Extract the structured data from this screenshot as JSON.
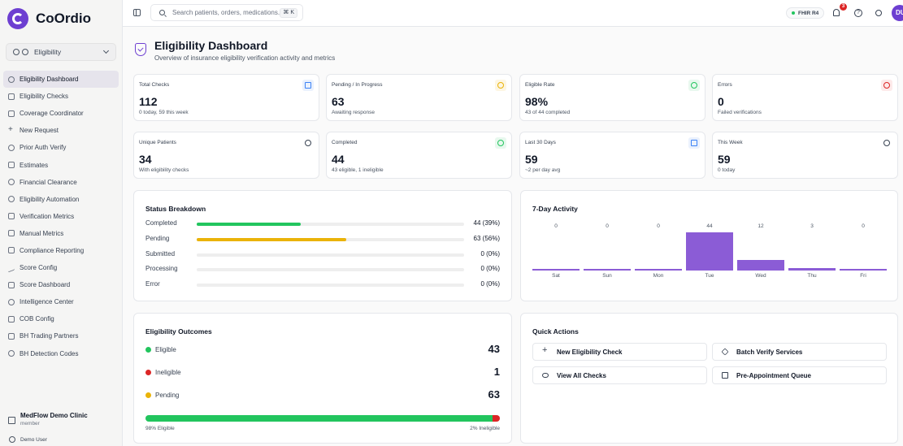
{
  "app": {
    "name": "CoOrdio"
  },
  "module": {
    "selected": "Eligibility"
  },
  "sidebar": {
    "items": [
      {
        "label": "Eligibility Dashboard",
        "icon": "check-circle-icon",
        "active": true
      },
      {
        "label": "Eligibility Checks",
        "icon": "file-icon"
      },
      {
        "label": "Coverage Coordinator",
        "icon": "briefcase-icon"
      },
      {
        "label": "New Request",
        "icon": "plus-icon"
      },
      {
        "label": "Prior Auth Verify",
        "icon": "shield-icon"
      },
      {
        "label": "Estimates",
        "icon": "file-icon"
      },
      {
        "label": "Financial Clearance",
        "icon": "shield-icon"
      },
      {
        "label": "Eligibility Automation",
        "icon": "gear-icon"
      },
      {
        "label": "Verification Metrics",
        "icon": "bar-chart-icon"
      },
      {
        "label": "Manual Metrics",
        "icon": "bar-chart-icon"
      },
      {
        "label": "Compliance Reporting",
        "icon": "file-icon"
      },
      {
        "label": "Score Config",
        "icon": "trend-icon"
      },
      {
        "label": "Score Dashboard",
        "icon": "bar-chart-icon"
      },
      {
        "label": "Intelligence Center",
        "icon": "chip-icon"
      },
      {
        "label": "COB Config",
        "icon": "layers-icon"
      },
      {
        "label": "BH Trading Partners",
        "icon": "network-icon"
      },
      {
        "label": "BH Detection Codes",
        "icon": "dollar-icon"
      }
    ],
    "clinic_name": "MedFlow Demo Clinic",
    "clinic_role": "member",
    "user": "Demo User"
  },
  "topbar": {
    "search_placeholder": "Search patients, orders, medications...",
    "shortcut": "⌘ K",
    "fhir": "FHIR R4",
    "notifications": "3",
    "avatar": "DU"
  },
  "page": {
    "title": "Eligibility Dashboard",
    "subtitle": "Overview of insurance eligibility verification activity and metrics"
  },
  "stats": [
    {
      "label": "Total Checks",
      "value": "112",
      "sub": "0 today, 59 this week",
      "icon": "file-icon",
      "color": "#3b82f6",
      "bg": "#eaf1fd"
    },
    {
      "label": "Pending / In Progress",
      "value": "63",
      "sub": "Awaiting response",
      "icon": "clock-icon",
      "color": "#eab308",
      "bg": "#fdf6e3"
    },
    {
      "label": "Eligible Rate",
      "value": "98%",
      "sub": "43 of 44 completed",
      "icon": "check-circle-icon",
      "color": "#22c55e",
      "bg": "#e8f8ee"
    },
    {
      "label": "Errors",
      "value": "0",
      "sub": "Failed verifications",
      "icon": "x-circle-icon",
      "color": "#dc2626",
      "bg": "#fdeaea"
    },
    {
      "label": "Unique Patients",
      "value": "34",
      "sub": "With eligibility checks",
      "icon": "user-icon",
      "color": "#374151",
      "bg": "#ffffff"
    },
    {
      "label": "Completed",
      "value": "44",
      "sub": "43 eligible, 1 ineligible",
      "icon": "check-circle-icon",
      "color": "#22c55e",
      "bg": "#e8f8ee"
    },
    {
      "label": "Last 30 Days",
      "value": "59",
      "sub": "~2 per day avg",
      "icon": "calendar-icon",
      "color": "#3b82f6",
      "bg": "#eaf1fd"
    },
    {
      "label": "This Week",
      "value": "59",
      "sub": "0 today",
      "icon": "gauge-icon",
      "color": "#374151",
      "bg": "#ffffff"
    }
  ],
  "status_breakdown": {
    "title": "Status Breakdown",
    "rows": [
      {
        "label": "Completed",
        "value": "44 (39%)",
        "pct": 39,
        "color": "#22c55e"
      },
      {
        "label": "Pending",
        "value": "63 (56%)",
        "pct": 56,
        "color": "#eab308"
      },
      {
        "label": "Submitted",
        "value": "0 (0%)",
        "pct": 0,
        "color": "#3b82f6"
      },
      {
        "label": "Processing",
        "value": "0 (0%)",
        "pct": 0,
        "color": "#8b5cd6"
      },
      {
        "label": "Error",
        "value": "0 (0%)",
        "pct": 0,
        "color": "#dc2626"
      }
    ]
  },
  "chart_data": {
    "type": "bar",
    "title": "7-Day Activity",
    "categories": [
      "Sat",
      "Sun",
      "Mon",
      "Tue",
      "Wed",
      "Thu",
      "Fri"
    ],
    "values": [
      0,
      0,
      0,
      44,
      12,
      3,
      0
    ],
    "ylim": [
      0,
      44
    ],
    "grid": false,
    "color": "#8b5cd6"
  },
  "outcomes": {
    "title": "Eligibility Outcomes",
    "rows": [
      {
        "label": "Eligible",
        "value": "43",
        "color": "#22c55e"
      },
      {
        "label": "Ineligible",
        "value": "1",
        "color": "#dc2626"
      },
      {
        "label": "Pending",
        "value": "63",
        "color": "#eab308"
      }
    ],
    "eligible_pct": 98,
    "eligible_text": "98% Eligible",
    "ineligible_text": "2% Ineligible"
  },
  "quick_actions": {
    "title": "Quick Actions",
    "buttons": [
      {
        "label": "New Eligibility Check",
        "icon": "plus-icon"
      },
      {
        "label": "Batch Verify Services",
        "icon": "layers-icon"
      },
      {
        "label": "View All Checks",
        "icon": "eye-icon"
      },
      {
        "label": "Pre-Appointment Queue",
        "icon": "calendar-icon"
      }
    ]
  }
}
